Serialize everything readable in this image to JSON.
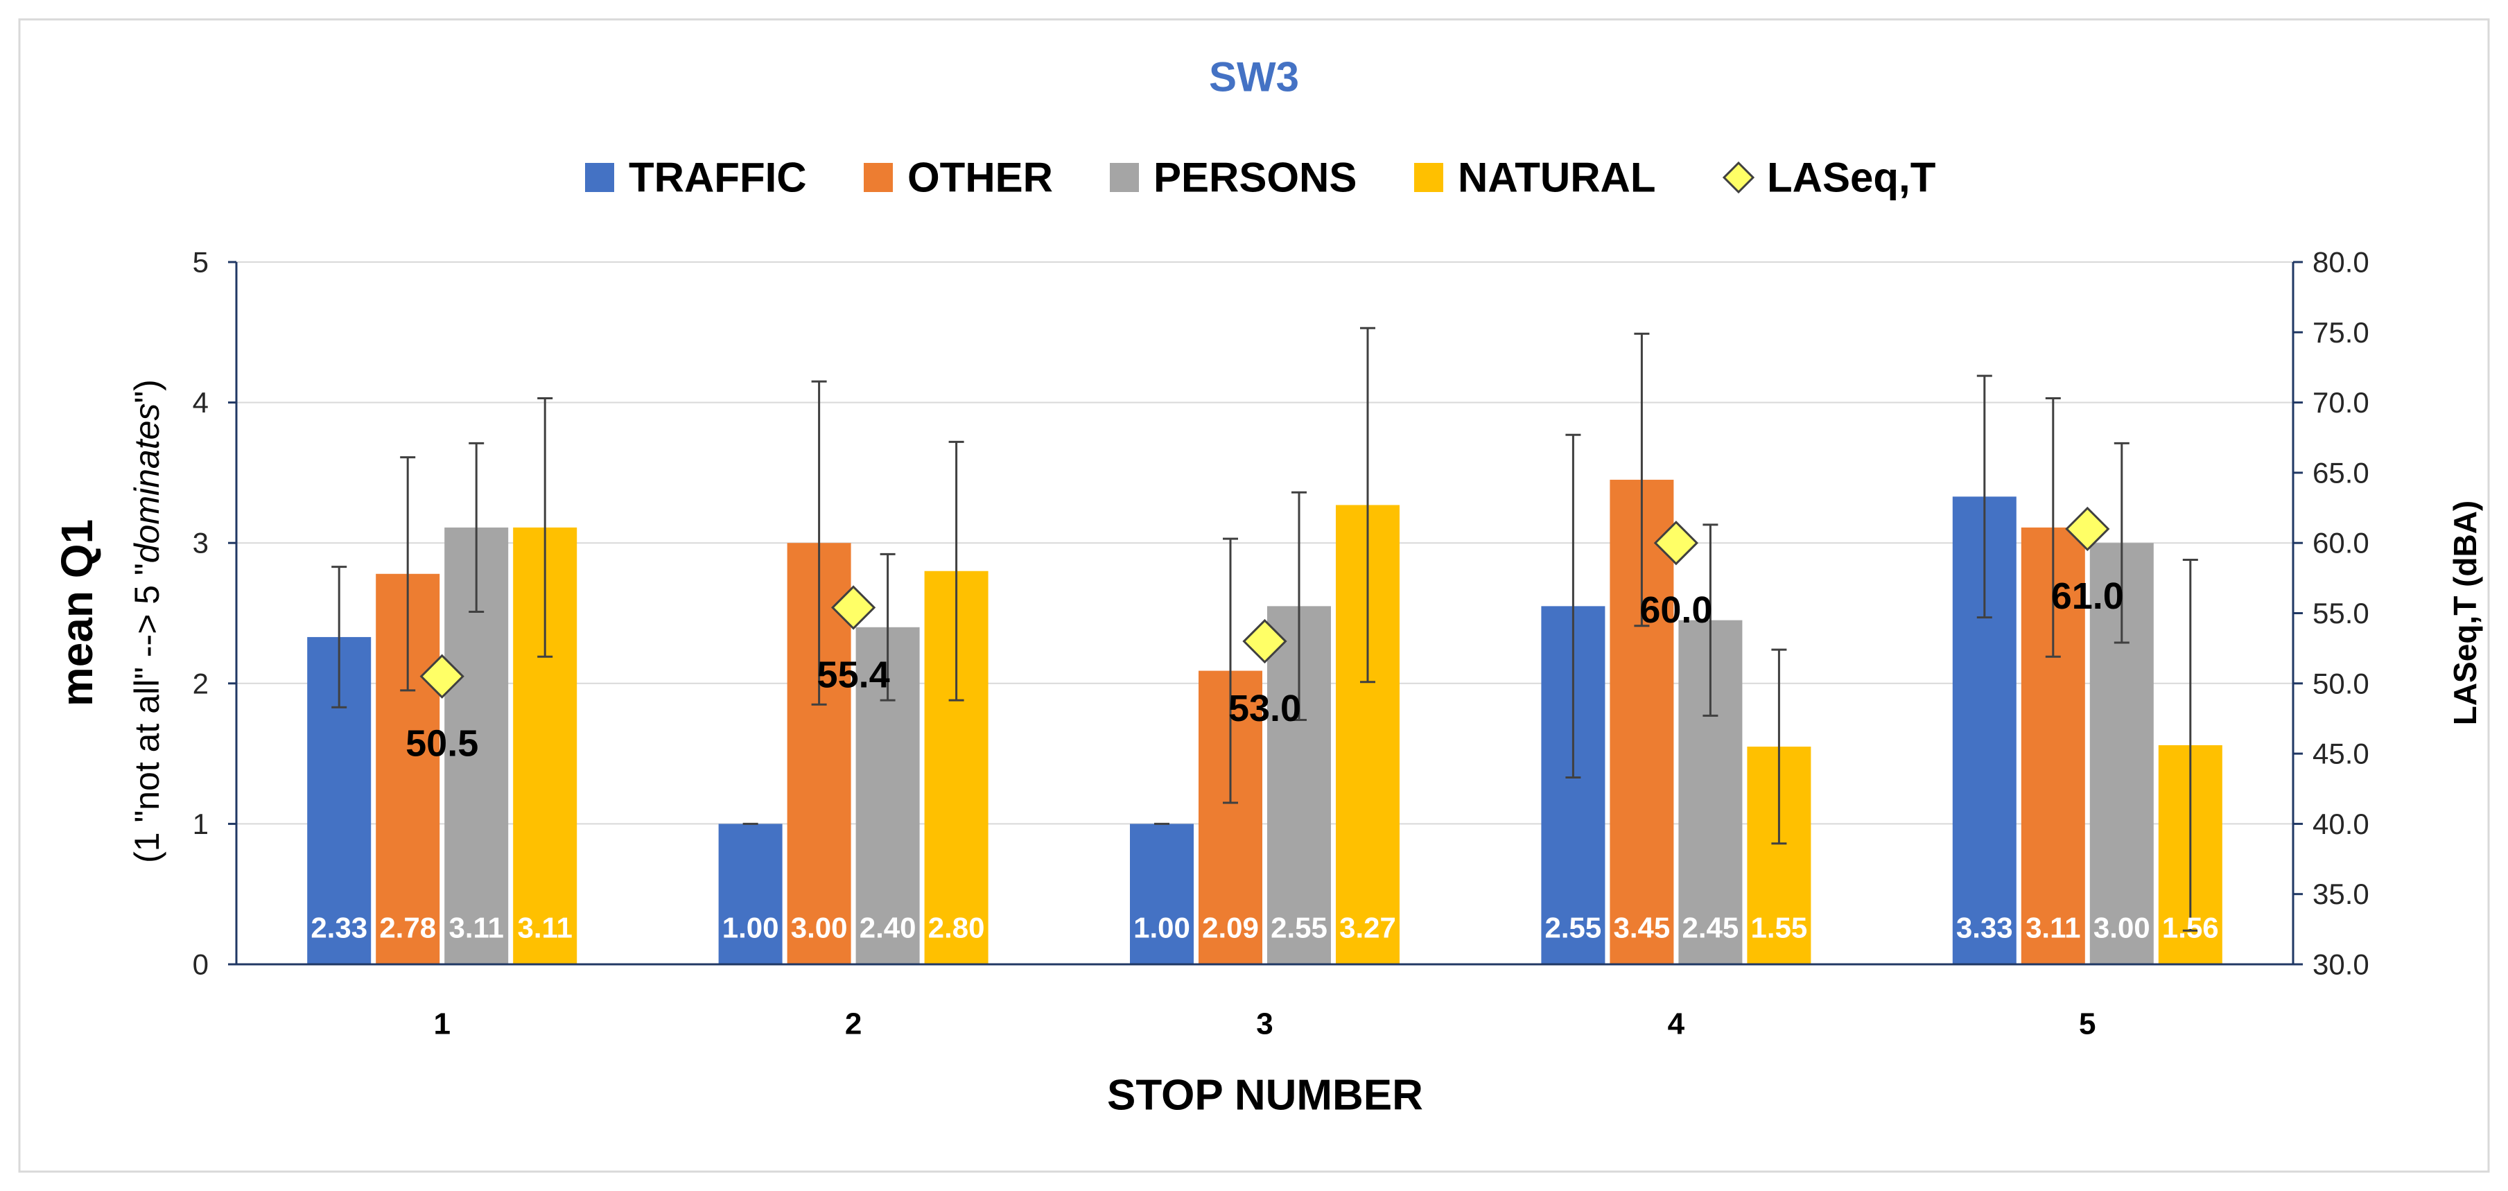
{
  "chart_data": {
    "type": "bar",
    "title": "SW3",
    "xlabel": "STOP NUMBER",
    "ylabel": "mean Q1",
    "ylabel_note": {
      "prefix": "(1 \"not at all\" --> 5 \"",
      "emphasis": "dominates",
      "suffix": "\")"
    },
    "y2label": "LASeq,T (dBA)",
    "categories": [
      "1",
      "2",
      "3",
      "4",
      "5"
    ],
    "ylim": [
      0,
      5
    ],
    "yticks": [
      "0",
      "1",
      "2",
      "3",
      "4",
      "5"
    ],
    "y2lim": [
      30,
      80
    ],
    "y2ticks": [
      "30.0",
      "35.0",
      "40.0",
      "45.0",
      "50.0",
      "55.0",
      "60.0",
      "65.0",
      "70.0",
      "75.0",
      "80.0"
    ],
    "grid": true,
    "legend_position": "top",
    "series": [
      {
        "name": "TRAFFIC",
        "color": "#4472C4",
        "values": [
          2.33,
          1.0,
          1.0,
          2.55,
          3.33
        ],
        "value_labels": [
          "2.33",
          "1.00",
          "1.00",
          "2.55",
          "3.33"
        ],
        "error": [
          0.5,
          0.0,
          0.0,
          1.22,
          0.86
        ]
      },
      {
        "name": "OTHER",
        "color": "#ED7D31",
        "values": [
          2.78,
          3.0,
          2.09,
          3.45,
          3.11
        ],
        "value_labels": [
          "2.78",
          "3.00",
          "2.09",
          "3.45",
          "3.11"
        ],
        "error": [
          0.83,
          1.15,
          0.94,
          1.04,
          0.92
        ]
      },
      {
        "name": "PERSONS",
        "color": "#A5A5A5",
        "values": [
          3.11,
          2.4,
          2.55,
          2.45,
          3.0
        ],
        "value_labels": [
          "3.11",
          "2.40",
          "2.55",
          "2.45",
          "3.00"
        ],
        "error": [
          0.6,
          0.52,
          0.81,
          0.68,
          0.71
        ]
      },
      {
        "name": "NATURAL",
        "color": "#FFC000",
        "values": [
          3.11,
          2.8,
          3.27,
          1.55,
          1.56
        ],
        "value_labels": [
          "3.11",
          "2.80",
          "3.27",
          "1.55",
          "1.56"
        ],
        "error": [
          0.92,
          0.92,
          1.26,
          0.69,
          1.32
        ]
      }
    ],
    "secondary_series": {
      "name": "LASeq,T",
      "type": "scatter",
      "color": "#FFFF66",
      "values": [
        50.5,
        55.4,
        53.0,
        60.0,
        61.0
      ],
      "value_labels": [
        "50.5",
        "55.4",
        "53.0",
        "60.0",
        "61.0"
      ]
    }
  }
}
